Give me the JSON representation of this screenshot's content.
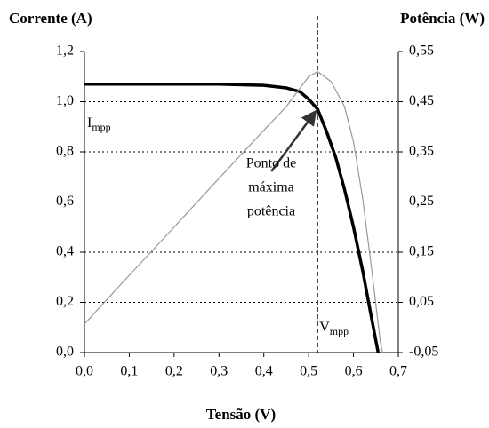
{
  "chart_data": {
    "type": "line",
    "title_left": "Corrente (A)",
    "title_right": "Potência (W)",
    "x_label": "Tensão (V)",
    "x": [
      0.0,
      0.1,
      0.2,
      0.3,
      0.4,
      0.45,
      0.48,
      0.5,
      0.52,
      0.54,
      0.56,
      0.58,
      0.6,
      0.62,
      0.64,
      0.655
    ],
    "series": [
      {
        "name": "Corrente",
        "color": "#000000",
        "axis": "y",
        "values": [
          1.07,
          1.07,
          1.07,
          1.07,
          1.065,
          1.055,
          1.04,
          1.01,
          0.97,
          0.88,
          0.78,
          0.65,
          0.5,
          0.33,
          0.14,
          0.0
        ]
      },
      {
        "name": "Potência",
        "color": "#999999",
        "axis": "y2",
        "x": [
          0.0,
          0.1,
          0.2,
          0.3,
          0.4,
          0.45,
          0.5,
          0.52,
          0.55,
          0.58,
          0.6,
          0.62,
          0.64,
          0.66,
          0.665
        ],
        "values": [
          0.007,
          0.104,
          0.2,
          0.297,
          0.393,
          0.44,
          0.5,
          0.51,
          0.49,
          0.44,
          0.37,
          0.26,
          0.12,
          -0.03,
          -0.05
        ]
      }
    ],
    "xlim": [
      0.0,
      0.7
    ],
    "xticks": [
      {
        "value": 0.0,
        "label": "0,0"
      },
      {
        "value": 0.1,
        "label": "0,1"
      },
      {
        "value": 0.2,
        "label": "0,2"
      },
      {
        "value": 0.3,
        "label": "0,3"
      },
      {
        "value": 0.4,
        "label": "0,4"
      },
      {
        "value": 0.5,
        "label": "0,5"
      },
      {
        "value": 0.6,
        "label": "0,6"
      },
      {
        "value": 0.7,
        "label": "0,7"
      }
    ],
    "ylim": [
      0.0,
      1.2
    ],
    "yticks": [
      {
        "value": 0.0,
        "label": "0,0"
      },
      {
        "value": 0.2,
        "label": "0,2"
      },
      {
        "value": 0.4,
        "label": "0,4"
      },
      {
        "value": 0.6,
        "label": "0,6"
      },
      {
        "value": 0.8,
        "label": "0,8"
      },
      {
        "value": 1.0,
        "label": "1,0"
      },
      {
        "value": 1.2,
        "label": "1,2"
      }
    ],
    "y2lim": [
      -0.05,
      0.55
    ],
    "y2ticks": [
      {
        "value": -0.05,
        "label": "-0,05"
      },
      {
        "value": 0.05,
        "label": "0,05"
      },
      {
        "value": 0.15,
        "label": "0,15"
      },
      {
        "value": 0.25,
        "label": "0,25"
      },
      {
        "value": 0.35,
        "label": "0,35"
      },
      {
        "value": 0.45,
        "label": "0,45"
      },
      {
        "value": 0.55,
        "label": "0,55"
      }
    ],
    "grid": true,
    "mpp": {
      "x": 0.52,
      "y": 0.97
    },
    "annotations": {
      "impp": {
        "text": "I",
        "sub": "mpp"
      },
      "vmpp": {
        "text": "V",
        "sub": "mpp"
      },
      "point": [
        "Ponto de",
        "máxima",
        "potência"
      ]
    }
  }
}
